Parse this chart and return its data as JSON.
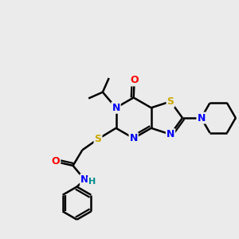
{
  "bg_color": "#ebebeb",
  "atom_colors": {
    "N": "#0000ff",
    "S": "#ccaa00",
    "O": "#ff0000",
    "H": "#008b8b"
  },
  "bond_color": "#000000",
  "bond_width": 1.8,
  "font_size": 9
}
